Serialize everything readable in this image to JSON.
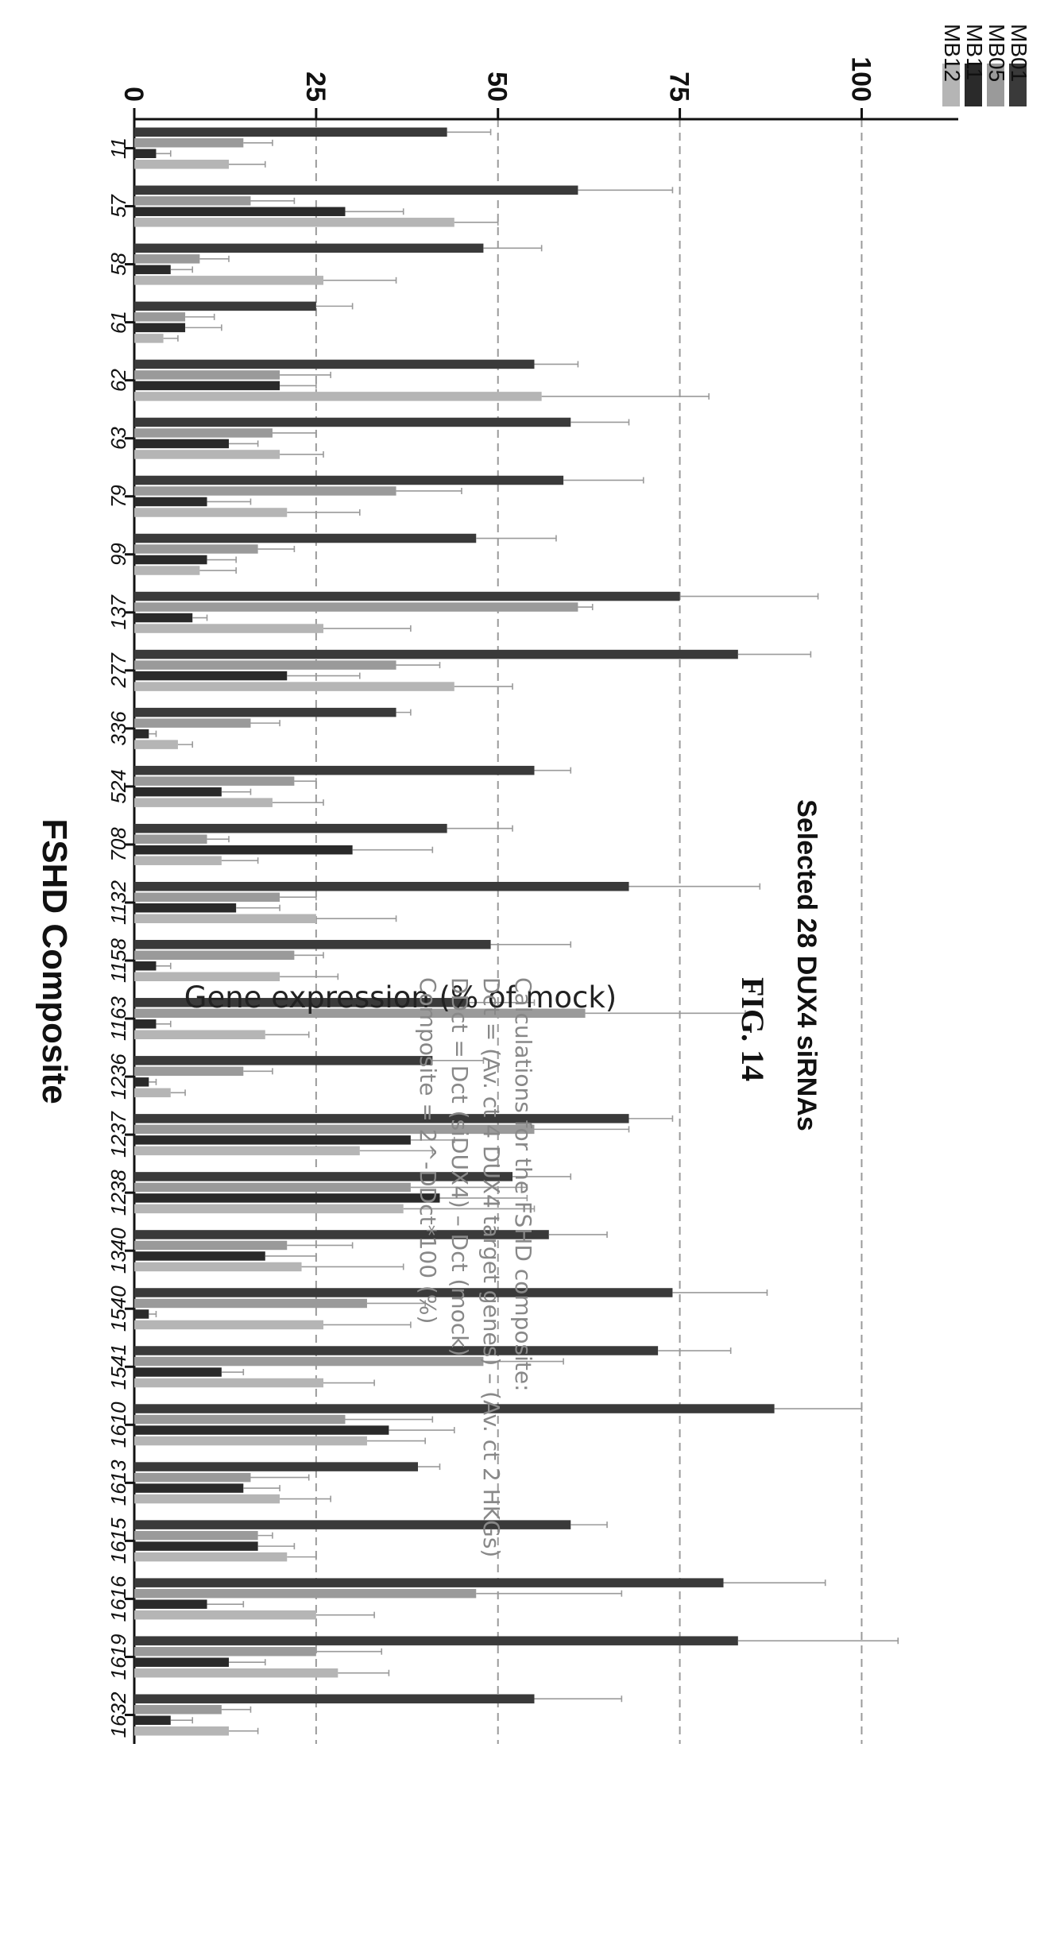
{
  "chart_data": {
    "type": "bar",
    "title": "FSHD Composite",
    "xlabel": "Selected 28 DUX4 siRNAs",
    "ylabel": "Gene expression (% of mock)",
    "ylim": [
      0,
      110
    ],
    "yticks": [
      0,
      25,
      50,
      75,
      100
    ],
    "grid": "dashed at 25, 50, 75, 100",
    "legend": "top-right",
    "categories": [
      "11",
      "57",
      "58",
      "61",
      "62",
      "63",
      "79",
      "99",
      "137",
      "277",
      "336",
      "524",
      "708",
      "1132",
      "1158",
      "1163",
      "1236",
      "1237",
      "1238",
      "1340",
      "1540",
      "1541",
      "1610",
      "1613",
      "1615",
      "1616",
      "1619",
      "1632"
    ],
    "series": [
      {
        "name": "MB01",
        "color": "#3a3a3a",
        "values": [
          43,
          61,
          48,
          25,
          55,
          60,
          59,
          47,
          75,
          83,
          36,
          55,
          43,
          68,
          49,
          46,
          41,
          68,
          52,
          57,
          74,
          72,
          88,
          39,
          60,
          81,
          83,
          55
        ],
        "errors": [
          6,
          13,
          8,
          5,
          6,
          8,
          11,
          11,
          19,
          10,
          2,
          5,
          9,
          18,
          11,
          9,
          7,
          6,
          8,
          8,
          13,
          10,
          12,
          3,
          5,
          14,
          22,
          12
        ]
      },
      {
        "name": "MB05",
        "color": "#9a9a9a",
        "values": [
          15,
          16,
          9,
          7,
          20,
          19,
          36,
          17,
          61,
          36,
          16,
          22,
          10,
          20,
          22,
          62,
          15,
          55,
          38,
          21,
          32,
          48,
          29,
          16,
          17,
          47,
          25,
          12
        ],
        "errors": [
          4,
          6,
          4,
          4,
          7,
          6,
          9,
          5,
          2,
          6,
          4,
          3,
          3,
          5,
          4,
          22,
          4,
          13,
          16,
          9,
          8,
          11,
          12,
          8,
          2,
          20,
          9,
          4
        ]
      },
      {
        "name": "MB11",
        "color": "#2a2a2a",
        "values": [
          3,
          29,
          5,
          7,
          20,
          13,
          10,
          10,
          8,
          21,
          2,
          12,
          30,
          14,
          3,
          3,
          2,
          38,
          42,
          18,
          2,
          12,
          35,
          15,
          17,
          10,
          13,
          5
        ],
        "errors": [
          2,
          8,
          3,
          5,
          5,
          4,
          6,
          4,
          2,
          10,
          1,
          4,
          11,
          6,
          2,
          2,
          1,
          6,
          12,
          7,
          1,
          3,
          9,
          5,
          5,
          5,
          5,
          3
        ]
      },
      {
        "name": "MB12",
        "color": "#b5b5b5",
        "values": [
          13,
          44,
          26,
          4,
          56,
          20,
          21,
          9,
          26,
          44,
          6,
          19,
          12,
          25,
          20,
          18,
          5,
          31,
          37,
          23,
          26,
          26,
          32,
          20,
          21,
          25,
          28,
          13
        ],
        "errors": [
          5,
          6,
          10,
          2,
          23,
          6,
          10,
          5,
          12,
          8,
          2,
          7,
          5,
          11,
          8,
          6,
          2,
          10,
          18,
          14,
          12,
          7,
          8,
          7,
          4,
          8,
          7,
          4
        ]
      }
    ]
  },
  "notes": {
    "heading": "Calculations for the FSHD composite:",
    "line1": "Dct = (Av. ct 4 DUX4 target genes) – (Av. ct 2 HKGs)",
    "line2": "DDct = Dct (siDUX4) – Dct (mock)",
    "line3": "Composite = 2^-DDct*100 (%)"
  },
  "figure_label": "FIG. 14"
}
